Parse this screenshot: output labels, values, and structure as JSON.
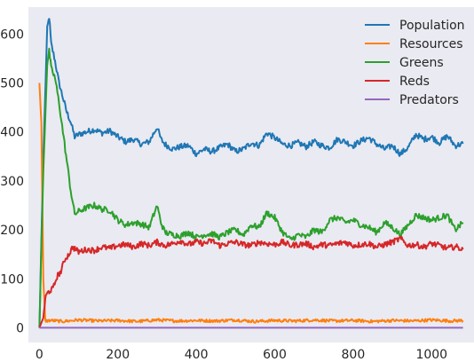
{
  "chart_data": {
    "type": "line",
    "title": "",
    "xlabel": "",
    "ylabel": "",
    "xlim": [
      -28,
      1108
    ],
    "ylim": [
      -30,
      655
    ],
    "grid": false,
    "background": "#eaeaf2",
    "legend_position": "top-right",
    "x_ticks": [
      0,
      200,
      400,
      600,
      800,
      1000
    ],
    "y_ticks": [
      0,
      100,
      200,
      300,
      400,
      500,
      600
    ],
    "x_tick_labels": [
      "0",
      "200",
      "400",
      "600",
      "800",
      "1000"
    ],
    "y_tick_labels": [
      "0",
      "100",
      "200",
      "300",
      "400",
      "500",
      "600"
    ],
    "series": [
      {
        "name": "Population",
        "color": "#1f77b4",
        "x": [
          0,
          10,
          20,
          25,
          30,
          40,
          50,
          60,
          70,
          80,
          90,
          100,
          120,
          140,
          160,
          180,
          200,
          220,
          240,
          260,
          280,
          300,
          310,
          320,
          340,
          360,
          380,
          400,
          420,
          440,
          460,
          480,
          500,
          520,
          540,
          560,
          580,
          600,
          620,
          640,
          660,
          680,
          700,
          720,
          740,
          760,
          780,
          800,
          820,
          840,
          860,
          880,
          900,
          920,
          940,
          960,
          980,
          1000,
          1020,
          1040,
          1060,
          1080
        ],
        "y": [
          0,
          350,
          610,
          635,
          580,
          545,
          500,
          470,
          440,
          420,
          390,
          395,
          400,
          405,
          398,
          402,
          390,
          380,
          385,
          375,
          380,
          410,
          385,
          375,
          365,
          370,
          372,
          355,
          365,
          360,
          368,
          375,
          360,
          365,
          378,
          372,
          398,
          388,
          375,
          372,
          378,
          370,
          380,
          372,
          368,
          385,
          380,
          372,
          382,
          388,
          375,
          365,
          372,
          355,
          368,
          395,
          385,
          390,
          378,
          392,
          372,
          376
        ]
      },
      {
        "name": "Resources",
        "color": "#ff7f0e",
        "x": [
          0,
          5,
          10,
          15,
          30,
          60,
          100,
          150,
          200,
          250,
          300,
          350,
          400,
          450,
          500,
          550,
          600,
          650,
          700,
          750,
          800,
          850,
          900,
          950,
          1000,
          1050,
          1080
        ],
        "y": [
          500,
          420,
          100,
          14,
          15,
          13,
          16,
          14,
          15,
          13,
          16,
          14,
          15,
          14,
          16,
          13,
          15,
          14,
          16,
          14,
          15,
          13,
          15,
          14,
          16,
          14,
          15
        ]
      },
      {
        "name": "Greens",
        "color": "#2ca02c",
        "x": [
          0,
          10,
          20,
          25,
          30,
          40,
          50,
          60,
          70,
          80,
          90,
          100,
          120,
          140,
          160,
          180,
          200,
          220,
          240,
          260,
          280,
          300,
          310,
          320,
          340,
          360,
          380,
          400,
          420,
          440,
          460,
          480,
          500,
          520,
          540,
          560,
          580,
          600,
          620,
          640,
          660,
          680,
          700,
          720,
          740,
          760,
          780,
          800,
          820,
          840,
          860,
          880,
          900,
          920,
          940,
          960,
          980,
          1000,
          1020,
          1040,
          1060,
          1080
        ],
        "y": [
          0,
          320,
          540,
          565,
          530,
          510,
          460,
          400,
          340,
          280,
          232,
          238,
          245,
          250,
          242,
          240,
          220,
          210,
          215,
          212,
          205,
          250,
          215,
          195,
          190,
          188,
          195,
          185,
          190,
          192,
          185,
          195,
          200,
          190,
          210,
          205,
          235,
          225,
          195,
          180,
          190,
          185,
          200,
          195,
          220,
          225,
          215,
          220,
          210,
          205,
          195,
          215,
          205,
          190,
          210,
          230,
          225,
          220,
          225,
          230,
          200,
          215
        ]
      },
      {
        "name": "Reds",
        "color": "#d62728",
        "x": [
          0,
          10,
          15,
          20,
          25,
          35,
          45,
          55,
          65,
          75,
          85,
          100,
          120,
          140,
          160,
          180,
          200,
          220,
          240,
          260,
          280,
          300,
          320,
          340,
          360,
          380,
          400,
          420,
          440,
          460,
          480,
          500,
          520,
          540,
          560,
          580,
          600,
          620,
          640,
          660,
          680,
          700,
          720,
          740,
          760,
          780,
          800,
          820,
          840,
          860,
          880,
          900,
          920,
          940,
          960,
          980,
          1000,
          1020,
          1040,
          1060,
          1080
        ],
        "y": [
          0,
          20,
          60,
          70,
          75,
          80,
          105,
          115,
          140,
          150,
          165,
          155,
          160,
          158,
          165,
          162,
          168,
          170,
          165,
          172,
          168,
          175,
          168,
          172,
          178,
          170,
          175,
          172,
          178,
          168,
          172,
          175,
          170,
          168,
          175,
          172,
          170,
          175,
          168,
          170,
          172,
          165,
          170,
          168,
          172,
          175,
          168,
          170,
          172,
          165,
          170,
          175,
          182,
          168,
          170,
          165,
          172,
          168,
          162,
          166,
          160
        ]
      },
      {
        "name": "Predators",
        "color": "#9467bd",
        "x": [
          0,
          1080
        ],
        "y": [
          0,
          0
        ]
      }
    ]
  }
}
